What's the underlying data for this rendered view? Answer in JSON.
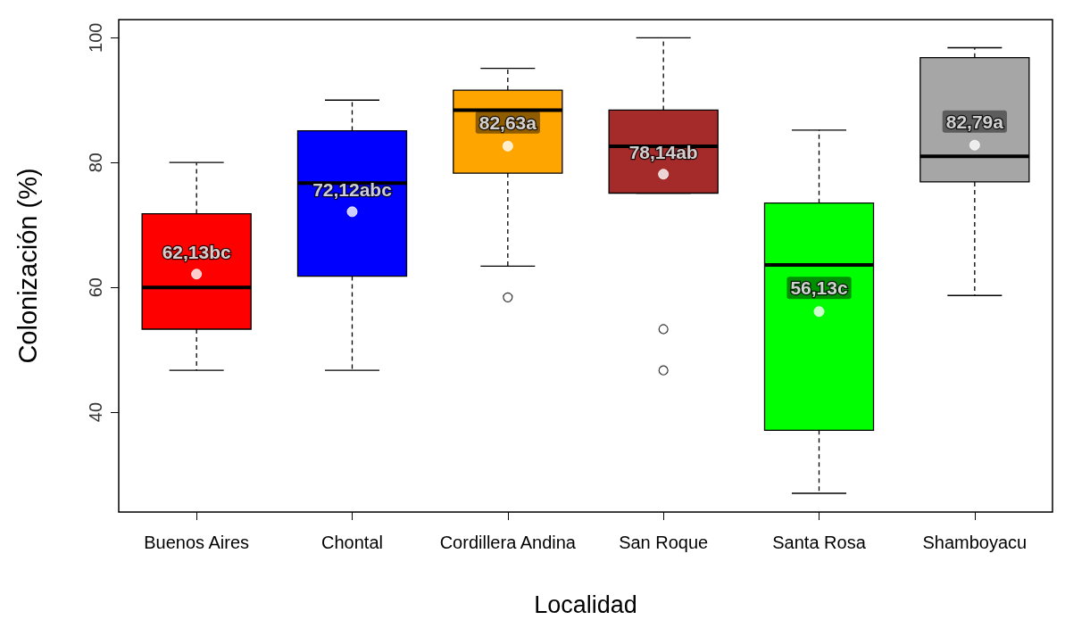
{
  "chart_data": {
    "type": "box",
    "xlabel": "Localidad",
    "ylabel": "Colonización (%)",
    "categories": [
      "Buenos Aires",
      "Chontal",
      "Cordillera Andina",
      "San Roque",
      "Santa Rosa",
      "Shamboyacu"
    ],
    "colors": [
      "#ff0000",
      "#0000ff",
      "#ffa500",
      "#a52a2a",
      "#00ff00",
      "#a6a6a6"
    ],
    "boxes": [
      {
        "low": 46.7,
        "q1": 53.3,
        "median": 60,
        "q3": 71.8,
        "high": 80,
        "mean": 62.13
      },
      {
        "low": 46.7,
        "q1": 61.8,
        "median": 76.7,
        "q3": 85.1,
        "high": 90,
        "mean": 72.12
      },
      {
        "low": 63.4,
        "q1": 78.3,
        "median": 88.4,
        "q3": 91.6,
        "high": 95.1,
        "mean": 82.63,
        "outliers": [
          58.4
        ]
      },
      {
        "low": 75.1,
        "q1": 75.1,
        "median": 82.6,
        "q3": 88.4,
        "high": 100,
        "mean": 78.14,
        "outliers": [
          53.3,
          46.7
        ]
      },
      {
        "low": 27,
        "q1": 37.1,
        "median": 63.6,
        "q3": 73.5,
        "high": 85.2,
        "mean": 56.13
      },
      {
        "low": 58.7,
        "q1": 76.9,
        "median": 81,
        "q3": 96.8,
        "high": 98.4,
        "mean": 82.79
      }
    ],
    "annotations": [
      "62,13bc",
      "72,12abc",
      "82,63a",
      "78,14ab",
      "56,13c",
      "82,79a"
    ],
    "ylim": [
      24,
      102.9
    ],
    "yticks": [
      40,
      60,
      80,
      100
    ],
    "grid": false,
    "legend": false
  }
}
